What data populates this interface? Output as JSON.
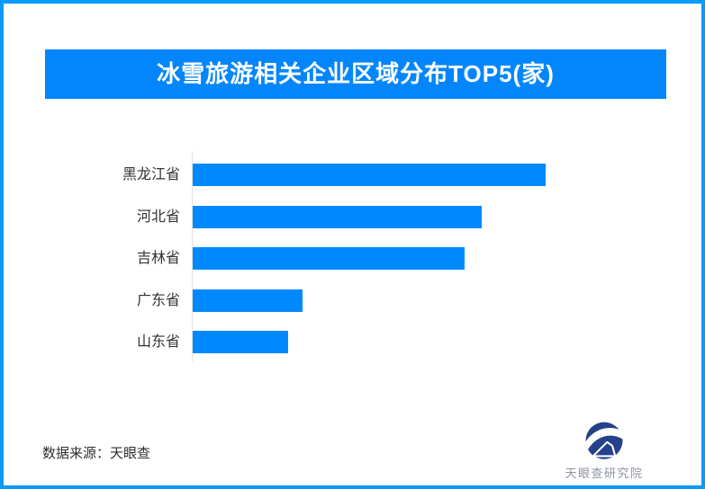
{
  "header": {
    "title": "冰雪旅游相关企业区域分布TOP5(家)"
  },
  "chart_data": {
    "type": "bar",
    "orientation": "horizontal",
    "title": "冰雪旅游相关企业区域分布TOP5(家)",
    "categories": [
      "黑龙江省",
      "河北省",
      "吉林省",
      "广东省",
      "山东省"
    ],
    "values": [
      100,
      82,
      77,
      31,
      27
    ],
    "unit": "relative bar length (no numeric axis or data labels shown, max bar = 100)",
    "xlabel": "",
    "ylabel": "",
    "grid": false,
    "legend": false
  },
  "footer": {
    "source": "数据来源：天眼查",
    "brand": "天眼查研究院"
  },
  "colors": {
    "bar": "#0089fe",
    "header_bg": "#0386fb",
    "page_border": "#089af7",
    "axis_line": "#e3e3e3",
    "label_text": "#333333",
    "source_text": "#2f2f2f",
    "logo_navy": "#24418e",
    "logo_text": "#8d949e"
  }
}
